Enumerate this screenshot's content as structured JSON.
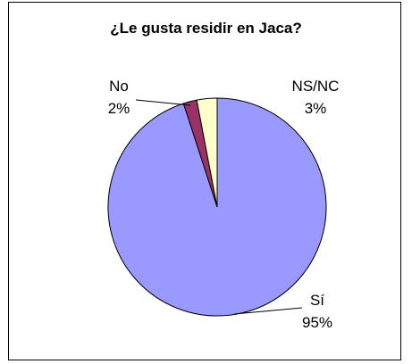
{
  "chart_data": {
    "type": "pie",
    "title": "¿Le gusta residir en Jaca?",
    "slices": [
      {
        "name": "Sí",
        "percent_label": "95%",
        "value": 95,
        "color": "#9999FF"
      },
      {
        "name": "No",
        "percent_label": "2%",
        "value": 2,
        "color": "#993366"
      },
      {
        "name": "NS/NC",
        "percent_label": "3%",
        "value": 3,
        "color": "#FFFFCC"
      }
    ],
    "start": "12 o'clock, clockwise",
    "legend": "none (data labels on slices)",
    "slice_border_color": "#000000"
  }
}
